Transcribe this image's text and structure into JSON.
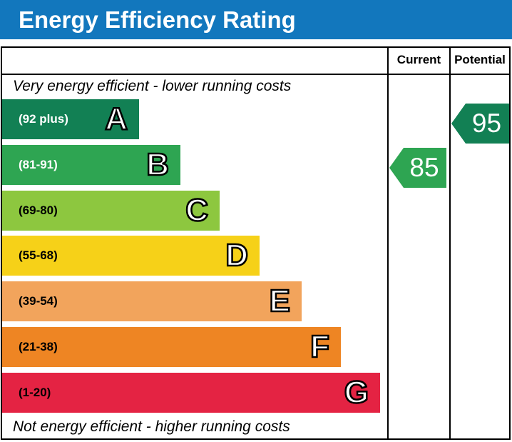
{
  "header": {
    "title": "Energy Efficiency Rating",
    "bar_color": "#1277bd",
    "columns": [
      "Current",
      "Potential"
    ]
  },
  "notes": {
    "top": "Very energy efficient - lower running costs",
    "bottom": "Not energy efficient - higher running costs"
  },
  "chart_data": {
    "type": "bar",
    "title": "Energy Efficiency Rating",
    "orientation": "horizontal",
    "categories": [
      "A",
      "B",
      "C",
      "D",
      "E",
      "F",
      "G"
    ],
    "bands": [
      {
        "letter": "A",
        "label": "(92 plus)",
        "range_min": 92,
        "range_max": 100,
        "color": "#128054",
        "label_color": "#ffffff"
      },
      {
        "letter": "B",
        "label": "(81-91)",
        "range_min": 81,
        "range_max": 91,
        "color": "#2ea552",
        "label_color": "#ffffff"
      },
      {
        "letter": "C",
        "label": "(69-80)",
        "range_min": 69,
        "range_max": 80,
        "color": "#8dc73f",
        "label_color": "#000000"
      },
      {
        "letter": "D",
        "label": "(55-68)",
        "range_min": 55,
        "range_max": 68,
        "color": "#f6d118",
        "label_color": "#000000"
      },
      {
        "letter": "E",
        "label": "(39-54)",
        "range_min": 39,
        "range_max": 54,
        "color": "#f2a45c",
        "label_color": "#000000"
      },
      {
        "letter": "F",
        "label": "(21-38)",
        "range_min": 21,
        "range_max": 38,
        "color": "#ee8523",
        "label_color": "#000000"
      },
      {
        "letter": "G",
        "label": "(1-20)",
        "range_min": 1,
        "range_max": 20,
        "color": "#e42343",
        "label_color": "#000000"
      }
    ],
    "current": {
      "value": "85",
      "band": "B",
      "color": "#2ea552"
    },
    "potential": {
      "value": "95",
      "band": "A",
      "color": "#128054"
    },
    "annotations": [
      "Very energy efficient - lower running costs",
      "Not energy efficient - higher running costs"
    ],
    "legend_position": "none",
    "grid": false
  }
}
